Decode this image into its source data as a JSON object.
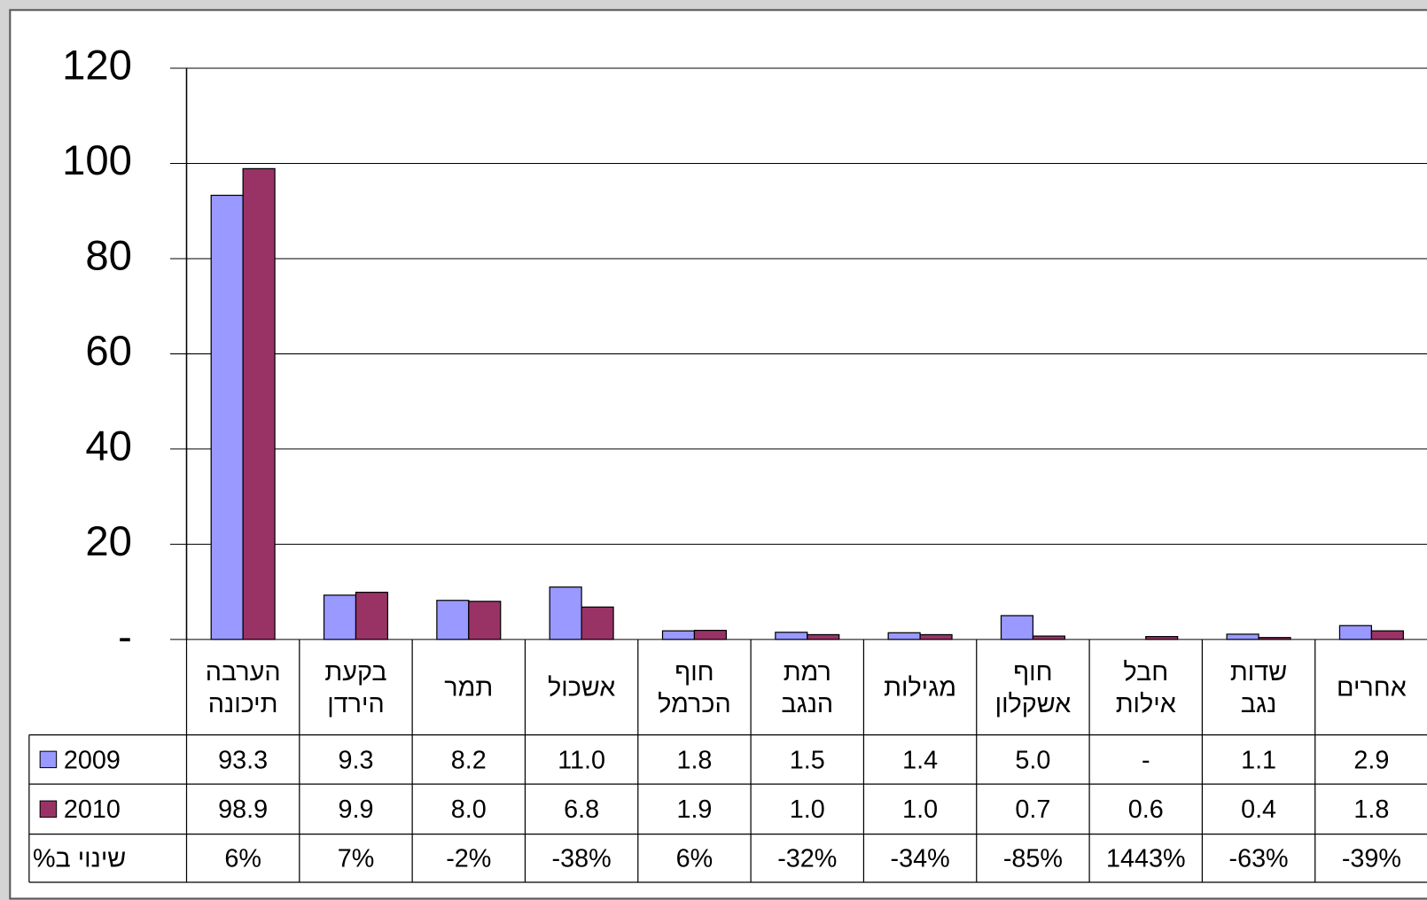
{
  "chart_data": {
    "type": "bar",
    "categories": [
      "הערבה\nתיכונה",
      "בקעת\nהירדן",
      "תמר",
      "אשכול",
      "חוף\nהכרמל",
      "רמת\nהנגב",
      "מגילות",
      "חוף\nאשקלון",
      "חבל\nאילות",
      "שדות\nנגב",
      "אחרים"
    ],
    "series": [
      {
        "name": "2009",
        "color": "#9999ff",
        "values": [
          93.3,
          9.3,
          8.2,
          11.0,
          1.8,
          1.5,
          1.4,
          5.0,
          0,
          1.1,
          2.9
        ],
        "value_labels": [
          "93.3",
          "9.3",
          "8.2",
          "11.0",
          "1.8",
          "1.5",
          "1.4",
          "5.0",
          "-",
          "1.1",
          "2.9"
        ]
      },
      {
        "name": "2010",
        "color": "#993366",
        "values": [
          98.9,
          9.9,
          8.0,
          6.8,
          1.9,
          1.0,
          1.0,
          0.7,
          0.6,
          0.4,
          1.8
        ],
        "value_labels": [
          "98.9",
          "9.9",
          "8.0",
          "6.8",
          "1.9",
          "1.0",
          "1.0",
          "0.7",
          "0.6",
          "0.4",
          "1.8"
        ]
      }
    ],
    "change": {
      "name": "שינוי ב%",
      "values": [
        6,
        7,
        -2,
        -38,
        6,
        -32,
        -34,
        -85,
        1443,
        -63,
        -39
      ],
      "value_labels": [
        "6%",
        "7%",
        "-2%",
        "-38%",
        "6%",
        "-32%",
        "-34%",
        "-85%",
        "1443%",
        "-63%",
        "-39%"
      ]
    },
    "ylim": [
      0,
      120
    ],
    "yticks": [
      {
        "value": 0,
        "label": "-"
      },
      20,
      40,
      60,
      80,
      100,
      120
    ],
    "grid": true
  }
}
